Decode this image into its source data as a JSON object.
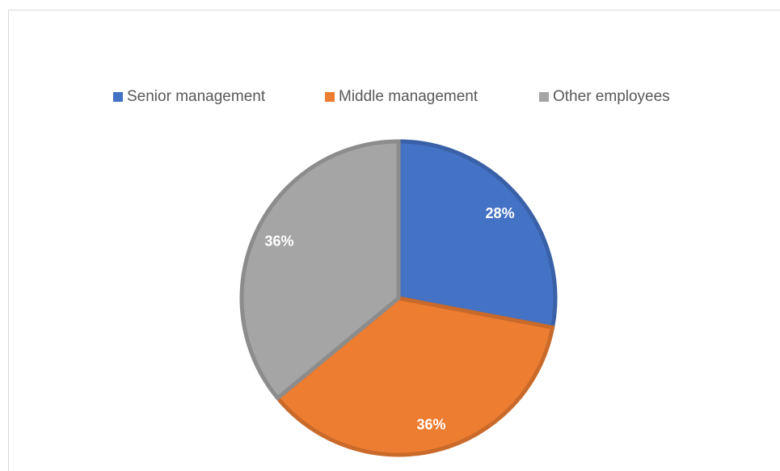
{
  "chart_data": {
    "type": "pie",
    "categories": [
      "Senior management",
      "Middle management",
      "Other employees"
    ],
    "values": [
      28,
      36,
      36
    ],
    "value_labels": [
      "28%",
      "36%",
      "36%"
    ],
    "colors": [
      "#4472c4",
      "#ed7d31",
      "#a5a5a5"
    ],
    "legend": "top"
  }
}
